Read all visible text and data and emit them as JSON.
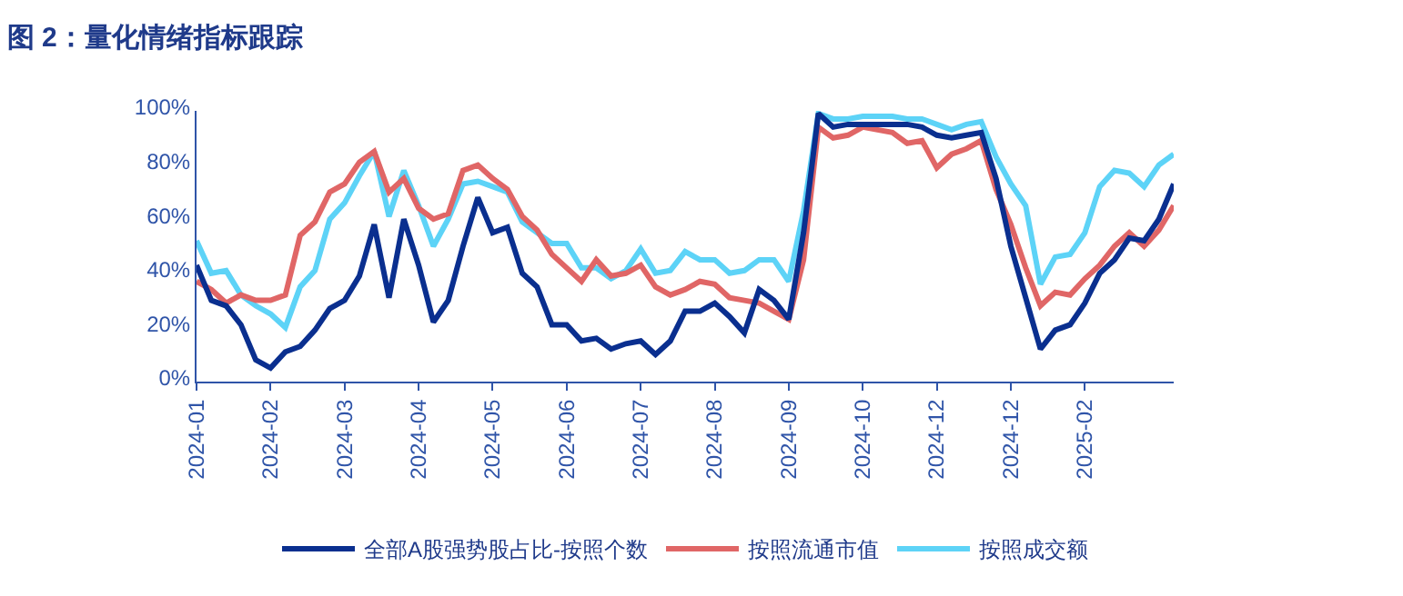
{
  "chart_data": {
    "type": "line",
    "title": "图 2：量化情绪指标跟踪",
    "categories": [
      "2024-01",
      null,
      null,
      null,
      null,
      "2024-02",
      null,
      null,
      null,
      null,
      "2024-03",
      null,
      null,
      null,
      null,
      "2024-04",
      null,
      null,
      null,
      null,
      "2024-05",
      null,
      null,
      null,
      null,
      "2024-06",
      null,
      null,
      null,
      null,
      "2024-07",
      null,
      null,
      null,
      null,
      "2024-08",
      null,
      null,
      null,
      null,
      "2024-09",
      null,
      null,
      null,
      null,
      "2024-10",
      null,
      null,
      null,
      null,
      "2024-12",
      null,
      null,
      null,
      null,
      "2024-12",
      null,
      null,
      null,
      null,
      "2025-02",
      null,
      null,
      null,
      null,
      null,
      null
    ],
    "ylim": [
      0,
      100
    ],
    "yticks": [
      {
        "value": 0,
        "label": "0%"
      },
      {
        "value": 20,
        "label": "20%"
      },
      {
        "value": 40,
        "label": "40%"
      },
      {
        "value": 60,
        "label": "60%"
      },
      {
        "value": 80,
        "label": "80%"
      },
      {
        "value": 100,
        "label": "100%"
      }
    ],
    "legend": "bottom",
    "marker": "none",
    "line_style": "solid",
    "series": [
      {
        "name": "全部A股强势股占比-按照个数",
        "color": "#0a2f8f",
        "values": [
          43,
          30,
          28,
          21,
          8,
          5,
          11,
          13,
          19,
          27,
          30,
          39,
          58,
          31,
          60,
          43,
          22,
          30,
          50,
          68,
          55,
          57,
          40,
          35,
          21,
          21,
          15,
          16,
          12,
          14,
          15,
          10,
          15,
          26,
          26,
          29,
          24,
          18,
          34,
          30,
          23,
          55,
          99,
          94,
          95,
          95,
          95,
          95,
          95,
          94,
          91,
          90,
          91,
          92,
          75,
          50,
          31,
          12,
          19,
          21,
          29,
          40,
          45,
          53,
          52,
          60,
          73
        ]
      },
      {
        "name": "按照流通市值",
        "color": "#e06666",
        "values": [
          37,
          34,
          29,
          32,
          30,
          30,
          32,
          54,
          59,
          70,
          73,
          81,
          85,
          70,
          75,
          64,
          60,
          62,
          78,
          80,
          75,
          71,
          61,
          56,
          47,
          42,
          37,
          45,
          39,
          40,
          43,
          35,
          32,
          34,
          37,
          36,
          31,
          30,
          29,
          26,
          23,
          45,
          94,
          90,
          91,
          94,
          93,
          92,
          88,
          89,
          79,
          84,
          86,
          89,
          71,
          58,
          42,
          28,
          33,
          32,
          38,
          43,
          50,
          55,
          50,
          56,
          65
        ]
      },
      {
        "name": "按照成交额",
        "color": "#5dd3f7",
        "values": [
          52,
          40,
          41,
          32,
          28,
          25,
          20,
          35,
          41,
          60,
          66,
          76,
          85,
          61,
          78,
          65,
          50,
          60,
          73,
          74,
          72,
          70,
          59,
          55,
          51,
          51,
          42,
          42,
          38,
          41,
          49,
          40,
          41,
          48,
          45,
          45,
          40,
          41,
          45,
          45,
          37,
          63,
          99,
          97,
          97,
          98,
          98,
          98,
          97,
          97,
          95,
          93,
          95,
          96,
          83,
          73,
          65,
          36,
          46,
          47,
          55,
          72,
          78,
          77,
          72,
          80,
          84
        ]
      }
    ]
  }
}
